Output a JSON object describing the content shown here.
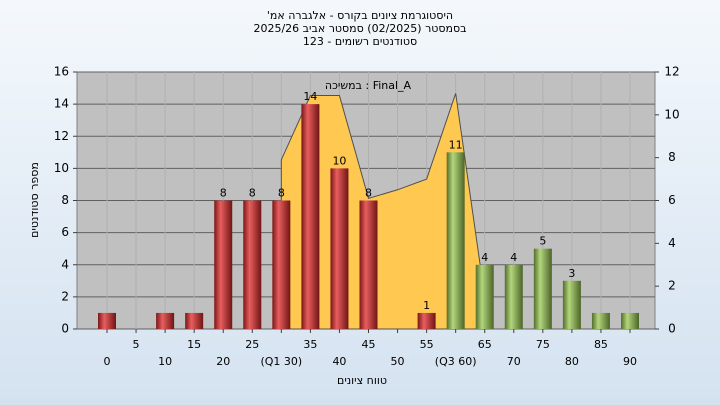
{
  "chart_data": {
    "type": "bar",
    "title": [
      "היסטוגרמת ציונים בקורס - אלגברה אמ'",
      "בסמסטר (02/2025) סמסטר אביב 2025/26",
      "סטודנטים רשומים - 123"
    ],
    "annotation": "במשיכה : Final_A",
    "x_label": "טווח ציונים",
    "y_label": "מספר סטודנטים",
    "categories": [
      "0",
      "5",
      "10",
      "15",
      "20",
      "25",
      "(Q1 30)",
      "35",
      "40",
      "45",
      "50",
      "55",
      "(Q3 60)",
      "65",
      "70",
      "75",
      "80",
      "85",
      "90"
    ],
    "values": [
      1,
      0,
      1,
      1,
      8,
      8,
      8,
      14,
      10,
      8,
      0,
      1,
      11,
      4,
      4,
      5,
      3,
      1,
      1
    ],
    "value_labels": [
      null,
      null,
      null,
      null,
      "8",
      "8",
      "8",
      "14",
      "10",
      "8",
      null,
      "1",
      "11",
      "4",
      "4",
      "5",
      "3",
      null,
      null
    ],
    "colors": [
      "#e02828",
      "#e02828",
      "#e02828",
      "#e02828",
      "#e02828",
      "#e02828",
      "#e02828",
      "#e02828",
      "#e02828",
      "#e02828",
      "#e02828",
      "#e02828",
      "#98c850",
      "#98c850",
      "#98c850",
      "#98c850",
      "#98c850",
      "#98c850",
      "#98c850"
    ],
    "area": {
      "color": "#ffc850",
      "axis": "y2",
      "values": [
        null,
        null,
        null,
        null,
        null,
        null,
        7.9,
        10.9,
        10.9,
        6.1,
        6.5,
        7.0,
        11,
        1.5,
        null,
        null,
        null,
        null,
        null
      ]
    },
    "ylim": [
      0,
      16
    ],
    "yticks": [
      0,
      2,
      4,
      6,
      8,
      10,
      12,
      14,
      16
    ],
    "y2lim": [
      0,
      12
    ],
    "y2ticks": [
      0,
      2,
      4,
      6,
      8,
      10,
      12
    ],
    "grid": true
  }
}
